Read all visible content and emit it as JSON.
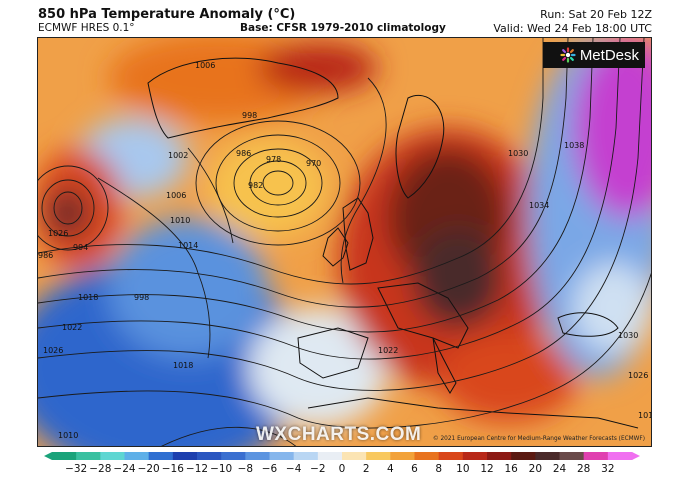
{
  "header": {
    "title": "850 hPa Temperature Anomaly (°C)",
    "model": "ECMWF HRES 0.1°",
    "base": "Base: CFSR 1979-2010 climatology",
    "run": "Run: Sat 20 Feb 12Z",
    "valid": "Valid: Wed 24 Feb 18:00 UTC"
  },
  "branding": {
    "logo_text": "MetDesk",
    "watermark": "WXCHARTS.COM",
    "copyright": "© 2021 European Centre for Medium-Range Weather Forecasts (ECMWF)"
  },
  "isobars": [
    {
      "label": "1006"
    },
    {
      "label": "998"
    },
    {
      "label": "1002"
    },
    {
      "label": "986"
    },
    {
      "label": "978"
    },
    {
      "label": "982"
    },
    {
      "label": "970"
    },
    {
      "label": "1006"
    },
    {
      "label": "1010"
    },
    {
      "label": "1014"
    },
    {
      "label": "1018"
    },
    {
      "label": "1022"
    },
    {
      "label": "1026"
    },
    {
      "label": "1030"
    },
    {
      "label": "1034"
    },
    {
      "label": "1038"
    },
    {
      "label": "1030"
    },
    {
      "label": "1026"
    },
    {
      "label": "1022"
    },
    {
      "label": "1014"
    },
    {
      "label": "1018"
    },
    {
      "label": "1026"
    },
    {
      "label": "986"
    },
    {
      "label": "994"
    },
    {
      "label": "998"
    },
    {
      "label": "1010"
    }
  ],
  "colorbar": {
    "ticks": [
      "−32",
      "−28",
      "−24",
      "−20",
      "−16",
      "−12",
      "−10",
      "−8",
      "−6",
      "−4",
      "−2",
      "0",
      "2",
      "4",
      "6",
      "8",
      "10",
      "12",
      "16",
      "20",
      "24",
      "28",
      "32"
    ],
    "colors": [
      "#1aa37a",
      "#39c0a0",
      "#5fd6d2",
      "#5fb0e8",
      "#2f6fd1",
      "#1d3fae",
      "#2a56c0",
      "#3a6fd0",
      "#5c94e0",
      "#86b6ec",
      "#b9d6f3",
      "#e9eef4",
      "#fbe4b3",
      "#f8c85f",
      "#f2a23a",
      "#e8731f",
      "#d9461a",
      "#b82818",
      "#8c1a14",
      "#5b1a12",
      "#4a2a2a",
      "#6a4a4a",
      "#e040b0",
      "#f070f0"
    ]
  }
}
